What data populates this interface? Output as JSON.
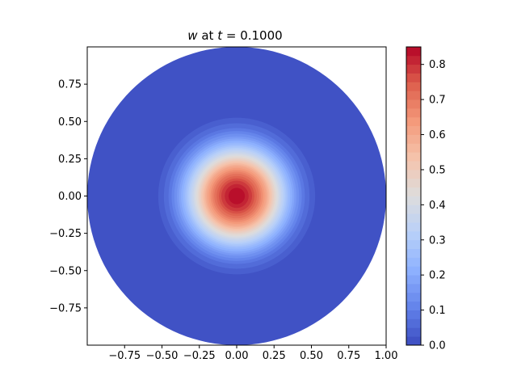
{
  "chart_data": {
    "type": "heatmap",
    "title": {
      "variable": "w",
      "middle": " at ",
      "time_symbol": "t",
      "equals": " = ",
      "time_value": "0.1000"
    },
    "xlabel": "",
    "ylabel": "",
    "xlim": [
      -1.0,
      1.0
    ],
    "ylim": [
      -1.0,
      1.0
    ],
    "x_ticks": [
      {
        "value": -0.75,
        "label": "−0.75"
      },
      {
        "value": -0.5,
        "label": "−0.50"
      },
      {
        "value": -0.25,
        "label": "−0.25"
      },
      {
        "value": 0.0,
        "label": "0.00"
      },
      {
        "value": 0.25,
        "label": "0.25"
      },
      {
        "value": 0.5,
        "label": "0.50"
      },
      {
        "value": 0.75,
        "label": "0.75"
      },
      {
        "value": 1.0,
        "label": "1.00"
      }
    ],
    "y_ticks": [
      {
        "value": 0.75,
        "label": "0.75"
      },
      {
        "value": 0.5,
        "label": "0.50"
      },
      {
        "value": 0.25,
        "label": "0.25"
      },
      {
        "value": 0.0,
        "label": "0.00"
      },
      {
        "value": -0.25,
        "label": "−0.25"
      },
      {
        "value": -0.5,
        "label": "−0.50"
      },
      {
        "value": -0.75,
        "label": "−0.75"
      }
    ],
    "domain": {
      "shape": "disk",
      "center": [
        0.0,
        0.0
      ],
      "radius": 1.0
    },
    "field": {
      "peak_location": [
        0.0,
        0.0
      ],
      "radial_profile": [
        {
          "r": 0.0,
          "w": 0.85
        },
        {
          "r": 0.05,
          "w": 0.83
        },
        {
          "r": 0.1,
          "w": 0.78
        },
        {
          "r": 0.15,
          "w": 0.7
        },
        {
          "r": 0.2,
          "w": 0.6
        },
        {
          "r": 0.25,
          "w": 0.47
        },
        {
          "r": 0.3,
          "w": 0.35
        },
        {
          "r": 0.35,
          "w": 0.24
        },
        {
          "r": 0.4,
          "w": 0.15
        },
        {
          "r": 0.45,
          "w": 0.08
        },
        {
          "r": 0.5,
          "w": 0.04
        },
        {
          "r": 0.55,
          "w": 0.01
        },
        {
          "r": 0.6,
          "w": 0.0
        },
        {
          "r": 1.0,
          "w": 0.0
        }
      ]
    },
    "colorbar": {
      "colormap": "coolwarm",
      "vmin": 0.0,
      "vmax": 0.85,
      "levels": 34,
      "ticks": [
        {
          "value": 0.0,
          "label": "0.0"
        },
        {
          "value": 0.1,
          "label": "0.1"
        },
        {
          "value": 0.2,
          "label": "0.2"
        },
        {
          "value": 0.3,
          "label": "0.3"
        },
        {
          "value": 0.4,
          "label": "0.4"
        },
        {
          "value": 0.5,
          "label": "0.5"
        },
        {
          "value": 0.6,
          "label": "0.6"
        },
        {
          "value": 0.7,
          "label": "0.7"
        },
        {
          "value": 0.8,
          "label": "0.8"
        }
      ]
    },
    "grid": false,
    "legend": "none"
  },
  "colors": {
    "low": "#3b4cc0",
    "mid": "#dddddd",
    "high": "#b40426",
    "axes": "#000000",
    "background": "#ffffff"
  }
}
